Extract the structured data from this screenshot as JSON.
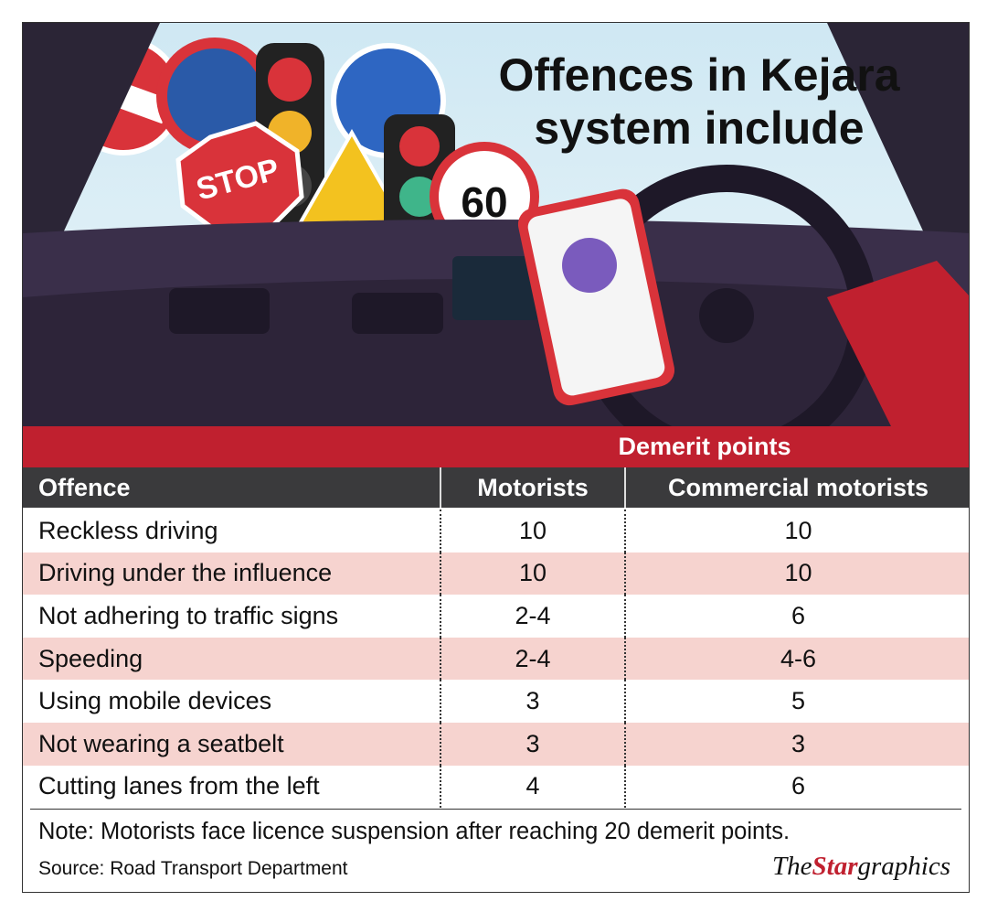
{
  "header": {
    "title_lines": [
      "Offences in Kejara",
      "system include"
    ]
  },
  "illustration": {
    "stop_sign": "STOP",
    "speed_sign": "60"
  },
  "table": {
    "group_header": "Demerit points",
    "columns": [
      "Offence",
      "Motorists",
      "Commercial motorists"
    ],
    "rows": [
      [
        "Reckless driving",
        "10",
        "10"
      ],
      [
        "Driving under the influence",
        "10",
        "10"
      ],
      [
        "Not adhering to traffic signs",
        "2-4",
        "6"
      ],
      [
        "Speeding",
        "2-4",
        "4-6"
      ],
      [
        "Using mobile devices",
        "3",
        "5"
      ],
      [
        "Not wearing a seatbelt",
        "3",
        "3"
      ],
      [
        "Cutting lanes from the left",
        "4",
        "6"
      ]
    ]
  },
  "note": "Note: Motorists face licence suspension after reaching 20 demerit points.",
  "source": "Source: Road Transport Department",
  "credit": {
    "the": "The",
    "star": "Star",
    "suffix": "graphics"
  }
}
